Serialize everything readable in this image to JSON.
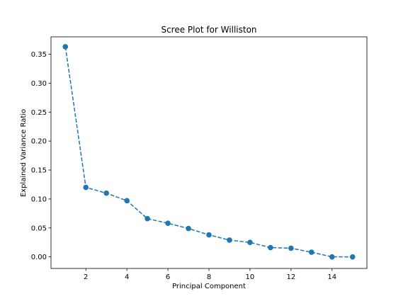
{
  "chart_data": {
    "type": "line",
    "title": "Scree Plot for Williston",
    "xlabel": "Principal Component",
    "ylabel": "Explained Variance Ratio",
    "xlim": [
      0.3,
      15.7
    ],
    "ylim": [
      -0.02,
      0.38
    ],
    "xticks": [
      2,
      4,
      6,
      8,
      10,
      12,
      14
    ],
    "yticks": [
      0.0,
      0.05,
      0.1,
      0.15,
      0.2,
      0.25,
      0.3,
      0.35
    ],
    "ytick_labels": [
      "0.00",
      "0.05",
      "0.10",
      "0.15",
      "0.20",
      "0.25",
      "0.30",
      "0.35"
    ],
    "grid": false,
    "legend": null,
    "series": [
      {
        "x": [
          1,
          2,
          3,
          4,
          5,
          6,
          7,
          8,
          9,
          10,
          11,
          12,
          13,
          14,
          15
        ],
        "values": [
          0.363,
          0.12,
          0.11,
          0.097,
          0.066,
          0.058,
          0.049,
          0.038,
          0.029,
          0.025,
          0.016,
          0.015,
          0.008,
          0.0,
          0.0
        ],
        "color": "#1f77b4",
        "line_style": "dashed",
        "marker": "circle"
      }
    ]
  }
}
